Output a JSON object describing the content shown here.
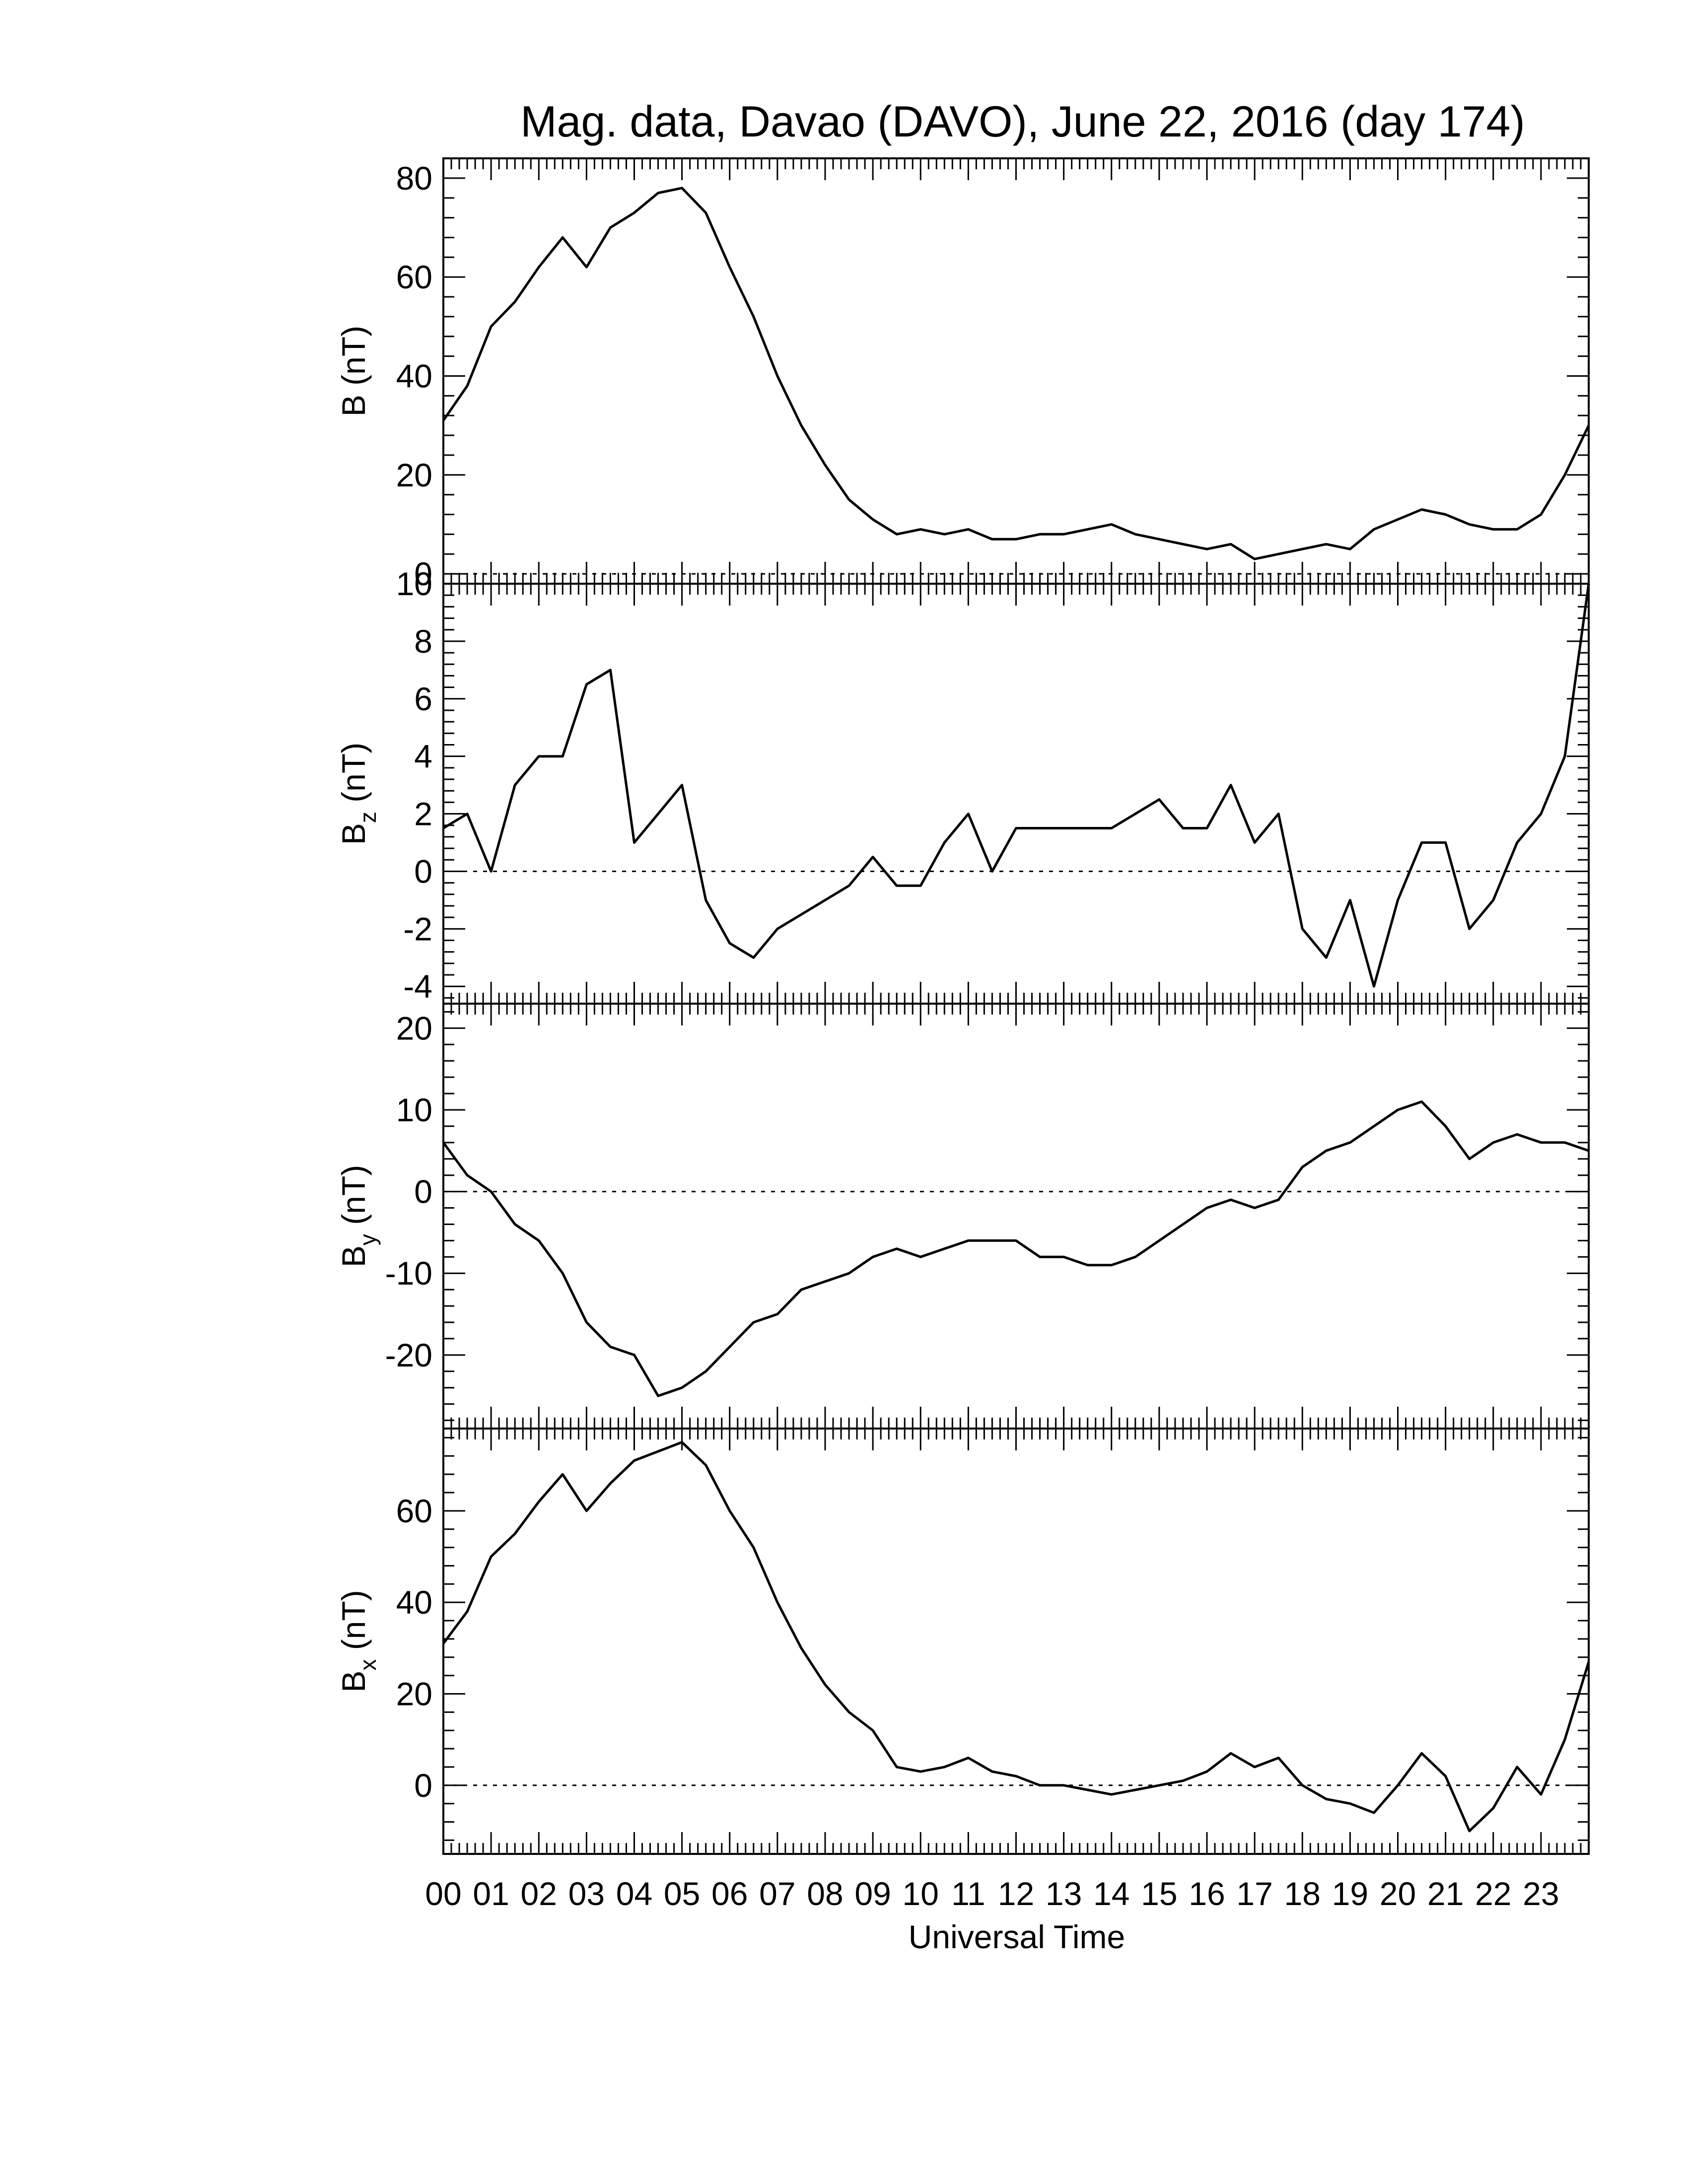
{
  "title": "Mag. data, Davao (DAVO), June 22, 2016 (day 174)",
  "xlabel": "Universal Time",
  "x_tick_labels": [
    "00",
    "01",
    "02",
    "03",
    "04",
    "05",
    "06",
    "07",
    "08",
    "09",
    "10",
    "11",
    "12",
    "13",
    "14",
    "15",
    "16",
    "17",
    "18",
    "19",
    "20",
    "21",
    "22",
    "23"
  ],
  "chart_data": [
    {
      "type": "line",
      "ylabel": "B (nT)",
      "xlim": [
        0,
        24
      ],
      "ylim": [
        -2,
        84
      ],
      "yticks": [
        0,
        20,
        40,
        60,
        80
      ],
      "zero_line": true,
      "x": [
        0,
        0.5,
        1,
        1.5,
        2,
        2.5,
        3,
        3.5,
        4,
        4.5,
        5,
        5.5,
        6,
        6.5,
        7,
        7.5,
        8,
        8.5,
        9,
        9.5,
        10,
        10.5,
        11,
        11.5,
        12,
        12.5,
        13,
        13.5,
        14,
        14.5,
        15,
        15.5,
        16,
        16.5,
        17,
        17.5,
        18,
        18.5,
        19,
        19.5,
        20,
        20.5,
        21,
        21.5,
        22,
        22.5,
        23,
        23.5,
        24
      ],
      "y": [
        31,
        38,
        50,
        55,
        62,
        68,
        62,
        70,
        73,
        77,
        78,
        73,
        62,
        52,
        40,
        30,
        22,
        15,
        11,
        8,
        9,
        8,
        9,
        7,
        7,
        8,
        8,
        9,
        10,
        8,
        7,
        6,
        5,
        6,
        3,
        4,
        5,
        6,
        5,
        9,
        11,
        13,
        12,
        10,
        9,
        9,
        12,
        20,
        30
      ]
    },
    {
      "type": "line",
      "ylabel": "B_z (nT)",
      "xlim": [
        0,
        24
      ],
      "ylim": [
        -4.6,
        10
      ],
      "yticks": [
        -4,
        -2,
        0,
        2,
        4,
        6,
        8,
        10
      ],
      "zero_line": true,
      "x": [
        0,
        0.5,
        1,
        1.5,
        2,
        2.5,
        3,
        3.5,
        4,
        4.5,
        5,
        5.5,
        6,
        6.5,
        7,
        7.5,
        8,
        8.5,
        9,
        9.5,
        10,
        10.5,
        11,
        11.5,
        12,
        12.5,
        13,
        13.5,
        14,
        14.5,
        15,
        15.5,
        16,
        16.5,
        17,
        17.5,
        18,
        18.5,
        19,
        19.5,
        20,
        20.5,
        21,
        21.5,
        22,
        22.5,
        23,
        23.5,
        24
      ],
      "y": [
        1.5,
        2,
        0,
        3,
        4,
        4,
        6.5,
        7,
        1,
        2,
        3,
        -1,
        -2.5,
        -3,
        -2,
        -1.5,
        -1,
        -0.5,
        0.5,
        -0.5,
        -0.5,
        1,
        2,
        0,
        1.5,
        1.5,
        1.5,
        1.5,
        1.5,
        2,
        2.5,
        1.5,
        1.5,
        3,
        1,
        2,
        -2,
        -3,
        -1,
        -4,
        -1,
        1,
        1,
        -2,
        -1,
        1,
        2,
        4,
        10
      ]
    },
    {
      "type": "line",
      "ylabel": "B_y (nT)",
      "xlim": [
        0,
        24
      ],
      "ylim": [
        -29,
        23
      ],
      "yticks": [
        -20,
        -10,
        0,
        10,
        20
      ],
      "zero_line": true,
      "x": [
        0,
        0.5,
        1,
        1.5,
        2,
        2.5,
        3,
        3.5,
        4,
        4.5,
        5,
        5.5,
        6,
        6.5,
        7,
        7.5,
        8,
        8.5,
        9,
        9.5,
        10,
        10.5,
        11,
        11.5,
        12,
        12.5,
        13,
        13.5,
        14,
        14.5,
        15,
        15.5,
        16,
        16.5,
        17,
        17.5,
        18,
        18.5,
        19,
        19.5,
        20,
        20.5,
        21,
        21.5,
        22,
        22.5,
        23,
        23.5,
        24
      ],
      "y": [
        6,
        2,
        0,
        -4,
        -6,
        -10,
        -16,
        -19,
        -20,
        -25,
        -24,
        -22,
        -19,
        -16,
        -15,
        -12,
        -11,
        -10,
        -8,
        -7,
        -8,
        -7,
        -6,
        -6,
        -6,
        -8,
        -8,
        -9,
        -9,
        -8,
        -6,
        -4,
        -2,
        -1,
        -2,
        -1,
        3,
        5,
        6,
        8,
        10,
        11,
        8,
        4,
        6,
        7,
        6,
        6,
        5
      ]
    },
    {
      "type": "line",
      "ylabel": "B_x (nT)",
      "xlim": [
        0,
        24
      ],
      "ylim": [
        -15,
        78
      ],
      "yticks": [
        0,
        20,
        40,
        60
      ],
      "zero_line": true,
      "x": [
        0,
        0.5,
        1,
        1.5,
        2,
        2.5,
        3,
        3.5,
        4,
        4.5,
        5,
        5.5,
        6,
        6.5,
        7,
        7.5,
        8,
        8.5,
        9,
        9.5,
        10,
        10.5,
        11,
        11.5,
        12,
        12.5,
        13,
        13.5,
        14,
        14.5,
        15,
        15.5,
        16,
        16.5,
        17,
        17.5,
        18,
        18.5,
        19,
        19.5,
        20,
        20.5,
        21,
        21.5,
        22,
        22.5,
        23,
        23.5,
        24
      ],
      "y": [
        31,
        38,
        50,
        55,
        62,
        68,
        60,
        66,
        71,
        73,
        75,
        70,
        60,
        52,
        40,
        30,
        22,
        16,
        12,
        4,
        3,
        4,
        6,
        3,
        2,
        0,
        0,
        -1,
        -2,
        -1,
        0,
        1,
        3,
        7,
        4,
        6,
        0,
        -3,
        -4,
        -6,
        0,
        7,
        2,
        -10,
        -5,
        4,
        -2,
        10,
        27
      ]
    }
  ]
}
